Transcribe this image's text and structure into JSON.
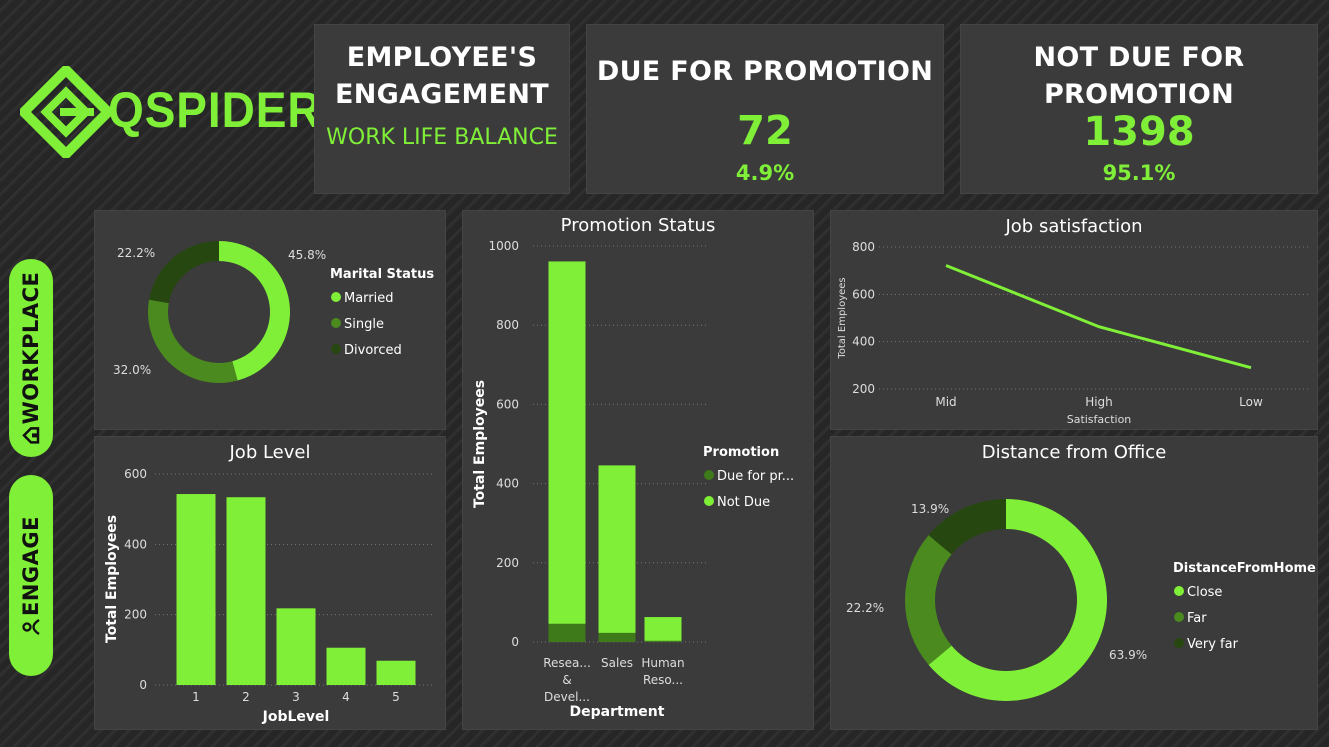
{
  "brand": {
    "name": "QSPIDERS",
    "color": "#80ef38"
  },
  "nav": {
    "workplace": "WORKPLACE",
    "engage": "ENGAGE"
  },
  "kpi": {
    "engagement_title_1": "EMPLOYEE'S",
    "engagement_title_2": "ENGAGEMENT",
    "engagement_subtitle": "WORK LIFE BALANCE",
    "due_title": "DUE FOR PROMOTION",
    "due_value": "72",
    "due_pct": "4.9%",
    "notdue_title_1": "NOT DUE FOR",
    "notdue_title_2": "PROMOTION",
    "notdue_value": "1398",
    "notdue_pct": "95.1%"
  },
  "chart_data": [
    {
      "id": "marital",
      "type": "pie",
      "title": "",
      "legend_title": "Marital Status",
      "legend_position": "right",
      "slices": [
        {
          "label": "Married",
          "value": 45.8,
          "label_text": "45.8%",
          "color": "#80ef38"
        },
        {
          "label": "Single",
          "value": 32.0,
          "label_text": "32.0%",
          "color": "#4a8a1f"
        },
        {
          "label": "Divorced",
          "value": 22.2,
          "label_text": "22.2%",
          "color": "#26470f"
        }
      ]
    },
    {
      "id": "promotion",
      "type": "bar",
      "title": "Promotion Status",
      "xlabel": "Department",
      "ylabel": "Total Employees",
      "ylim": [
        0,
        1000
      ],
      "yticks": [
        "0",
        "200",
        "400",
        "600",
        "800",
        "1000"
      ],
      "categories": [
        [
          "Resea...",
          "&",
          "Devel..."
        ],
        [
          "Sales"
        ],
        [
          "Human",
          "Reso..."
        ]
      ],
      "legend_title": "Promotion",
      "legend_position": "right",
      "series": [
        {
          "name": "Due for pr...",
          "color": "#3f7a1a",
          "values": [
            46,
            23,
            3
          ]
        },
        {
          "name": "Not Due",
          "color": "#80ef38",
          "values": [
            915,
            423,
            60
          ]
        }
      ]
    },
    {
      "id": "satisfaction",
      "type": "line",
      "title": "Job satisfaction",
      "xlabel": "Satisfaction",
      "ylabel": "Total Employees",
      "ylim": [
        200,
        800
      ],
      "yticks": [
        "200",
        "400",
        "600",
        "800"
      ],
      "categories": [
        "Mid",
        "High",
        "Low"
      ],
      "values": [
        722,
        463,
        290
      ]
    },
    {
      "id": "joblevel",
      "type": "bar",
      "title": "Job Level",
      "xlabel": "JobLevel",
      "ylabel": "Total Employees",
      "ylim": [
        0,
        600
      ],
      "yticks": [
        "0",
        "200",
        "400",
        "600"
      ],
      "categories": [
        "1",
        "2",
        "3",
        "4",
        "5"
      ],
      "values": [
        543,
        534,
        218,
        106,
        69
      ]
    },
    {
      "id": "distance",
      "type": "pie",
      "title": "Distance from Office",
      "legend_title": "DistanceFromHome",
      "legend_position": "right",
      "slices": [
        {
          "label": "Close",
          "value": 63.9,
          "label_text": "63.9%",
          "color": "#80ef38"
        },
        {
          "label": "Far",
          "value": 22.2,
          "label_text": "22.2%",
          "color": "#4a8a1f"
        },
        {
          "label": "Very far",
          "value": 13.9,
          "label_text": "13.9%",
          "color": "#26470f"
        }
      ]
    }
  ]
}
